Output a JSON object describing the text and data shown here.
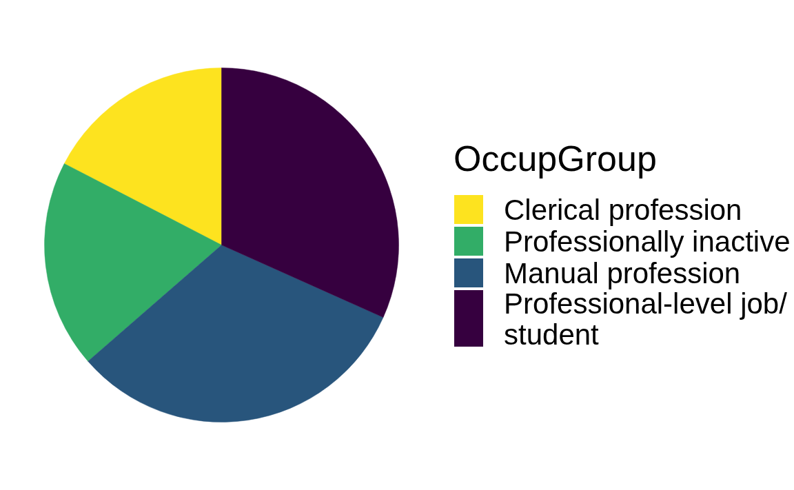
{
  "chart_data": {
    "type": "pie",
    "legend_title": "OccupGroup",
    "categories": [
      "Clerical profession",
      "Professionally inactive",
      "Manual profession",
      "Professional-level job/\nstudent"
    ],
    "values": [
      17.4,
      19.0,
      31.9,
      31.7
    ],
    "colors": [
      "#fde31f",
      "#32ad67",
      "#28557c",
      "#36003f"
    ],
    "legend": "right"
  }
}
